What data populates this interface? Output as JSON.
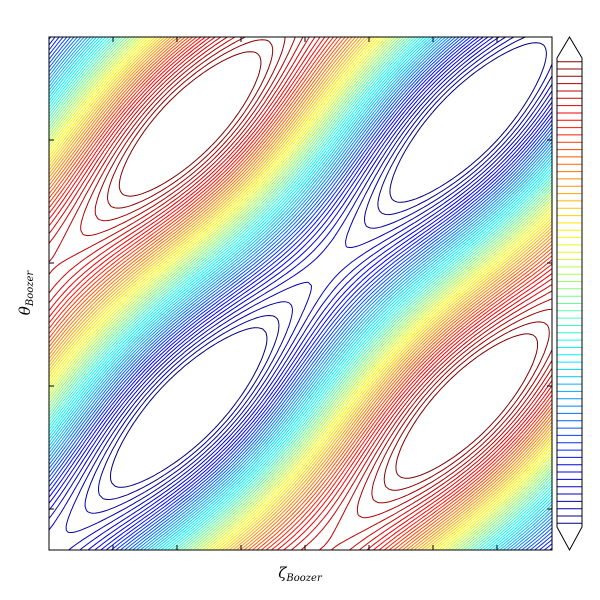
{
  "chart_data": {
    "type": "contour",
    "xlabel": {
      "symbol": "ζ",
      "subscript": "Boozer"
    },
    "ylabel": {
      "symbol": "θ",
      "subscript": "Boozer"
    },
    "colormap": "jet"
  }
}
